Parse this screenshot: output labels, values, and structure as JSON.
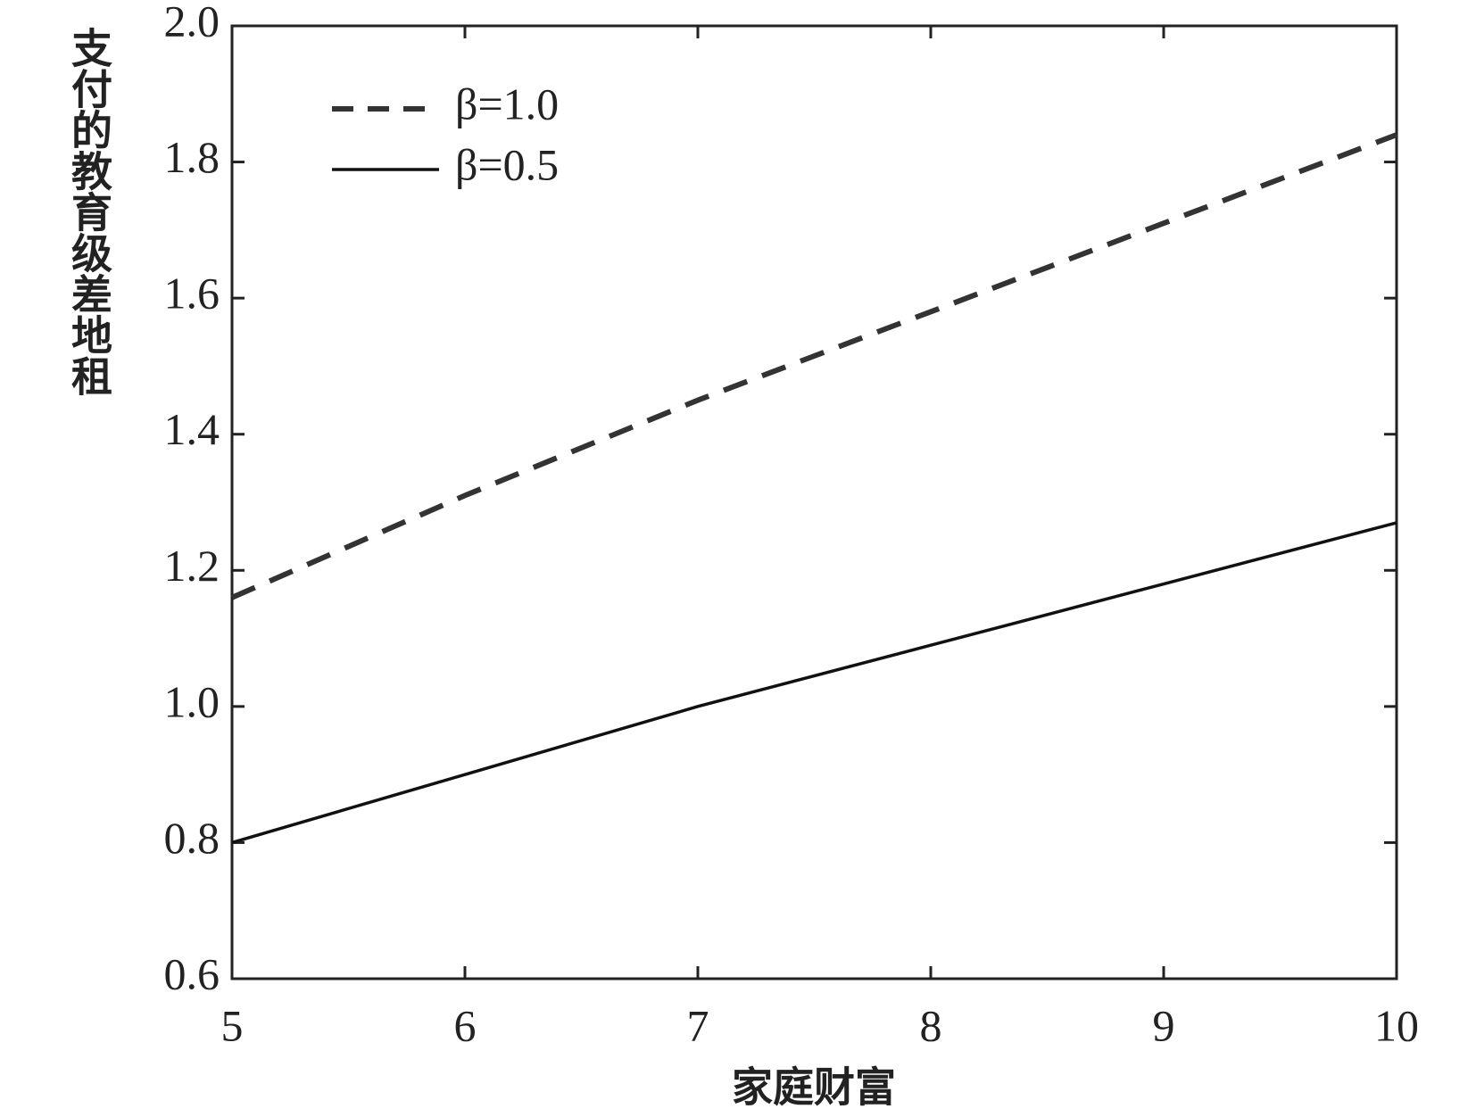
{
  "chart_data": {
    "type": "line",
    "x_label": "家庭财富",
    "y_label": "支付的教育级差地租",
    "x": [
      5,
      6,
      7,
      8,
      9,
      10
    ],
    "series": [
      {
        "name": "β=1.0",
        "color": "#333333",
        "dash": true,
        "values": [
          1.16,
          1.31,
          1.45,
          1.58,
          1.71,
          1.84
        ]
      },
      {
        "name": "β=0.5",
        "color": "#111111",
        "dash": false,
        "values": [
          0.8,
          0.9,
          1.0,
          1.09,
          1.18,
          1.27
        ]
      }
    ],
    "xlim": [
      5,
      10
    ],
    "xticks": [
      5,
      6,
      7,
      8,
      9,
      10
    ],
    "ylim": [
      0.6,
      2.0
    ],
    "yticks": [
      {
        "value": 0.6,
        "label": "0.6"
      },
      {
        "value": 0.8,
        "label": "0.8"
      },
      {
        "value": 1.0,
        "label": "1.0"
      },
      {
        "value": 1.2,
        "label": "1.2"
      },
      {
        "value": 1.4,
        "label": "1.4"
      },
      {
        "value": 1.6,
        "label": "1.6"
      },
      {
        "value": 1.8,
        "label": "1.8"
      },
      {
        "value": 2.0,
        "label": "2.0"
      }
    ],
    "grid": false,
    "legend": "upper left"
  }
}
